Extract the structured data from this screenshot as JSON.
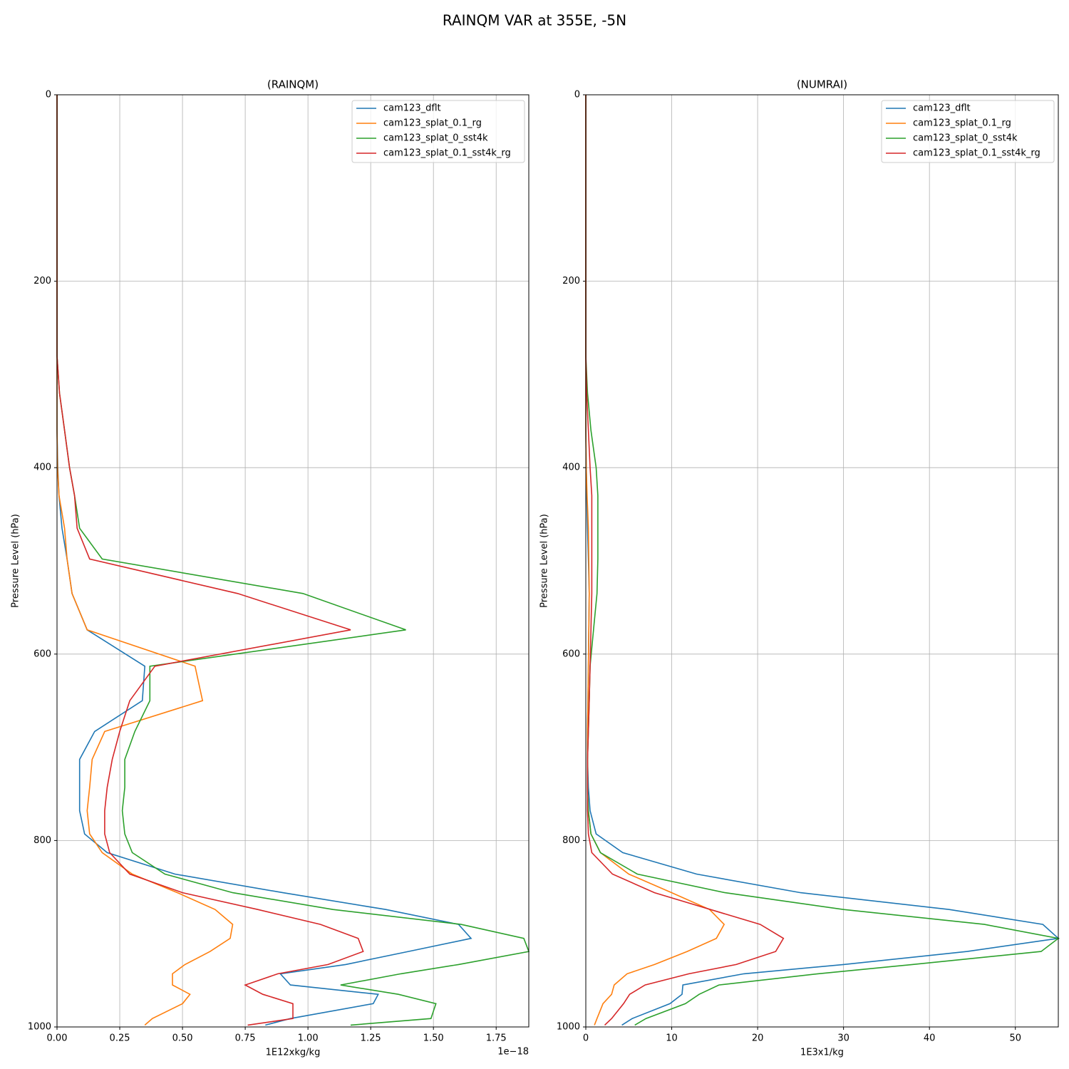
{
  "title": "RAINQM VAR at 355E, -5N",
  "chart_data": [
    {
      "type": "line",
      "title": "(RAINQM)",
      "xlabel": "1E12xkg/kg",
      "ylabel": "Pressure Level (hPa)",
      "x_offset_label": "1e−18",
      "xlim": [
        0,
        1.88
      ],
      "ylim": [
        1000,
        0
      ],
      "xticks": [
        {
          "value": 0,
          "label": "0.00"
        },
        0.25,
        {
          "value": 0.5,
          "label": "0.50"
        },
        0.75,
        {
          "value": 1,
          "label": "1.00"
        },
        1.25,
        {
          "value": 1.5,
          "label": "1.50"
        },
        1.75
      ],
      "yticks": [
        0,
        200,
        400,
        600,
        800,
        1000
      ],
      "grid": true,
      "legend": "upper right",
      "y": [
        0,
        50,
        100,
        150,
        200,
        250,
        280,
        320,
        360,
        400,
        430,
        465,
        498,
        535,
        574,
        613,
        650,
        683,
        713,
        743,
        768,
        793,
        813,
        836,
        856,
        874,
        890,
        905,
        919,
        933,
        943,
        955,
        965,
        975,
        991,
        998
      ],
      "series": [
        {
          "name": "cam123_dflt",
          "color": "#1f77b4",
          "values": [
            0,
            0,
            0,
            0,
            0,
            0,
            0,
            0,
            0,
            0.003,
            0.008,
            0.02,
            0.04,
            0.06,
            0.12,
            0.35,
            0.34,
            0.15,
            0.09,
            0.09,
            0.09,
            0.11,
            0.2,
            0.47,
            0.9,
            1.31,
            1.6,
            1.65,
            1.4,
            1.15,
            0.89,
            0.93,
            1.28,
            1.26,
            0.93,
            0.83
          ]
        },
        {
          "name": "cam123_splat_0.1_rg",
          "color": "#ff7f0e",
          "values": [
            0,
            0,
            0,
            0,
            0,
            0,
            0,
            0,
            0,
            0.002,
            0.008,
            0.03,
            0.04,
            0.06,
            0.12,
            0.55,
            0.58,
            0.19,
            0.14,
            0.13,
            0.12,
            0.13,
            0.18,
            0.3,
            0.48,
            0.63,
            0.7,
            0.69,
            0.61,
            0.51,
            0.46,
            0.46,
            0.53,
            0.5,
            0.38,
            0.35
          ]
        },
        {
          "name": "cam123_splat_0_sst4k",
          "color": "#2ca02c",
          "values": [
            0,
            0,
            0,
            0,
            0,
            0,
            0,
            0.01,
            0.03,
            0.05,
            0.07,
            0.09,
            0.18,
            0.98,
            1.39,
            0.37,
            0.37,
            0.31,
            0.27,
            0.27,
            0.26,
            0.27,
            0.3,
            0.43,
            0.7,
            1.1,
            1.61,
            1.86,
            1.88,
            1.6,
            1.37,
            1.13,
            1.36,
            1.51,
            1.49,
            1.17
          ]
        },
        {
          "name": "cam123_splat_0.1_sst4k_rg",
          "color": "#d62728",
          "values": [
            0,
            0,
            0,
            0,
            0,
            0,
            0,
            0.01,
            0.03,
            0.05,
            0.07,
            0.08,
            0.13,
            0.72,
            1.17,
            0.39,
            0.29,
            0.25,
            0.22,
            0.2,
            0.19,
            0.19,
            0.21,
            0.29,
            0.5,
            0.8,
            1.05,
            1.2,
            1.22,
            1.08,
            0.88,
            0.75,
            0.82,
            0.94,
            0.94,
            0.76
          ]
        }
      ]
    },
    {
      "type": "line",
      "title": "(NUMRAI)",
      "xlabel": "1E3x1/kg",
      "ylabel": "Pressure Level (hPa)",
      "xlim": [
        0,
        55
      ],
      "ylim": [
        1000,
        0
      ],
      "xticks": [
        0,
        10,
        20,
        30,
        40,
        50
      ],
      "yticks": [
        0,
        200,
        400,
        600,
        800,
        1000
      ],
      "grid": true,
      "legend": "upper right",
      "y": [
        0,
        50,
        100,
        150,
        200,
        250,
        280,
        320,
        360,
        400,
        430,
        465,
        498,
        535,
        574,
        613,
        650,
        683,
        713,
        743,
        768,
        793,
        813,
        836,
        856,
        874,
        890,
        905,
        919,
        933,
        943,
        955,
        965,
        975,
        991,
        998
      ],
      "series": [
        {
          "name": "cam123_dflt",
          "color": "#1f77b4",
          "values": [
            0,
            0,
            0,
            0,
            0,
            0,
            0,
            0,
            0,
            0.05,
            0.1,
            0.2,
            0.3,
            0.4,
            0.35,
            0.3,
            0.25,
            0.2,
            0.2,
            0.3,
            0.5,
            1.2,
            4.3,
            12.9,
            25,
            42.3,
            53.2,
            55,
            44.4,
            30,
            18.4,
            11.3,
            11.2,
            9.8,
            5.4,
            4.2
          ]
        },
        {
          "name": "cam123_splat_0.1_rg",
          "color": "#ff7f0e",
          "values": [
            0,
            0,
            0,
            0,
            0,
            0,
            0,
            0,
            0,
            0.05,
            0.15,
            0.3,
            0.35,
            0.4,
            0.35,
            0.3,
            0.25,
            0.2,
            0.2,
            0.2,
            0.3,
            0.6,
            1.7,
            5,
            10,
            14.4,
            16.1,
            15.2,
            11.8,
            8,
            4.8,
            3.3,
            3,
            2,
            1.3,
            1
          ]
        },
        {
          "name": "cam123_splat_0_sst4k",
          "color": "#2ca02c",
          "values": [
            0,
            0,
            0,
            0,
            0,
            0,
            0,
            0.2,
            0.6,
            1.2,
            1.4,
            1.4,
            1.4,
            1.3,
            0.9,
            0.5,
            0.4,
            0.3,
            0.2,
            0.2,
            0.3,
            0.6,
            1.7,
            6,
            16.2,
            30,
            46.4,
            55,
            53,
            38,
            27,
            15.5,
            13.2,
            11.6,
            7,
            5.7
          ]
        },
        {
          "name": "cam123_splat_0.1_sst4k_rg",
          "color": "#d62728",
          "values": [
            0,
            0,
            0,
            0,
            0,
            0,
            0,
            0.1,
            0.3,
            0.5,
            0.7,
            0.7,
            0.7,
            0.7,
            0.6,
            0.5,
            0.4,
            0.3,
            0.2,
            0.2,
            0.2,
            0.3,
            0.7,
            3.1,
            8,
            14.5,
            20.3,
            23,
            22.1,
            17.5,
            12,
            6.9,
            5.1,
            4.4,
            3,
            2.2
          ]
        }
      ]
    }
  ]
}
